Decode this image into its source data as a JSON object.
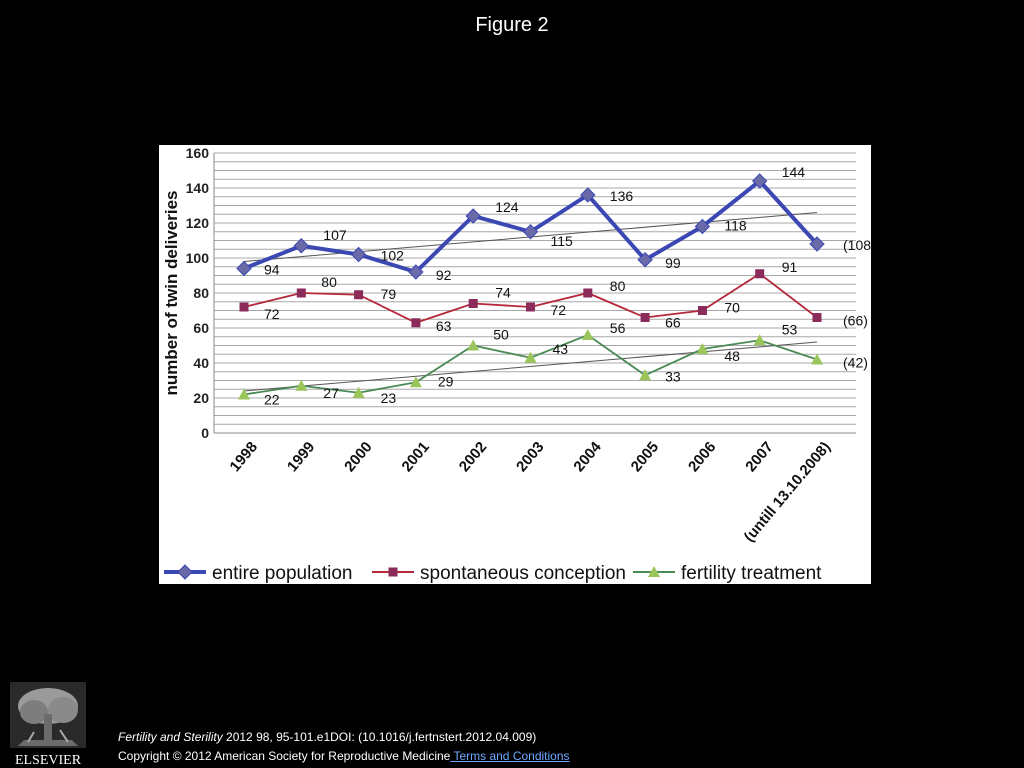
{
  "figure_title": "Figure 2",
  "chart_data": {
    "type": "line",
    "title": "",
    "ylabel": "number of twin deliveries",
    "xlabel": "",
    "ylim": [
      0,
      160
    ],
    "yticks": [
      0,
      20,
      40,
      60,
      80,
      100,
      120,
      140,
      160
    ],
    "grid": true,
    "legend_position": "bottom",
    "categories": [
      "1998",
      "1999",
      "2000",
      "2001",
      "2002",
      "2003",
      "2004",
      "2005",
      "2006",
      "2007",
      "(untill 13.10.2008)"
    ],
    "series": [
      {
        "name": "entire population",
        "color": "#3b48b3",
        "marker": "diamond",
        "values": [
          94,
          107,
          102,
          92,
          124,
          115,
          136,
          99,
          118,
          144,
          108
        ],
        "labels": [
          "94",
          "107",
          "102",
          "92",
          "124",
          "115",
          "136",
          "99",
          "118",
          "144",
          "(108)"
        ]
      },
      {
        "name": "spontaneous conception",
        "color": "#b5283a",
        "marker": "square",
        "values": [
          72,
          80,
          79,
          63,
          74,
          72,
          80,
          66,
          70,
          91,
          66
        ],
        "labels": [
          "72",
          "80",
          "79",
          "63",
          "74",
          "72",
          "80",
          "66",
          "70",
          "91",
          "(66)"
        ]
      },
      {
        "name": "fertility treatment",
        "color": "#4a8a55",
        "marker": "triangle",
        "values": [
          22,
          27,
          23,
          29,
          50,
          43,
          56,
          33,
          48,
          53,
          42
        ],
        "labels": [
          "22",
          "27",
          "23",
          "29",
          "50",
          "43",
          "56",
          "33",
          "48",
          "53",
          "(42)"
        ]
      }
    ],
    "trendlines": [
      {
        "series": "entire population",
        "start": 98,
        "end": 126
      },
      {
        "series": "fertility treatment",
        "start": 24,
        "end": 52
      }
    ]
  },
  "citation": {
    "journal": "Fertility and Sterility",
    "details": " 2012 98, 95-101.e1DOI: (10.1016/j.fertnstert.2012.04.009)",
    "copyright": "Copyright © 2012 American Society for Reproductive Medicine",
    "terms": " Terms and Conditions"
  },
  "publisher": "ELSEVIER",
  "icons": {
    "logo": "elsevier-tree-logo"
  }
}
